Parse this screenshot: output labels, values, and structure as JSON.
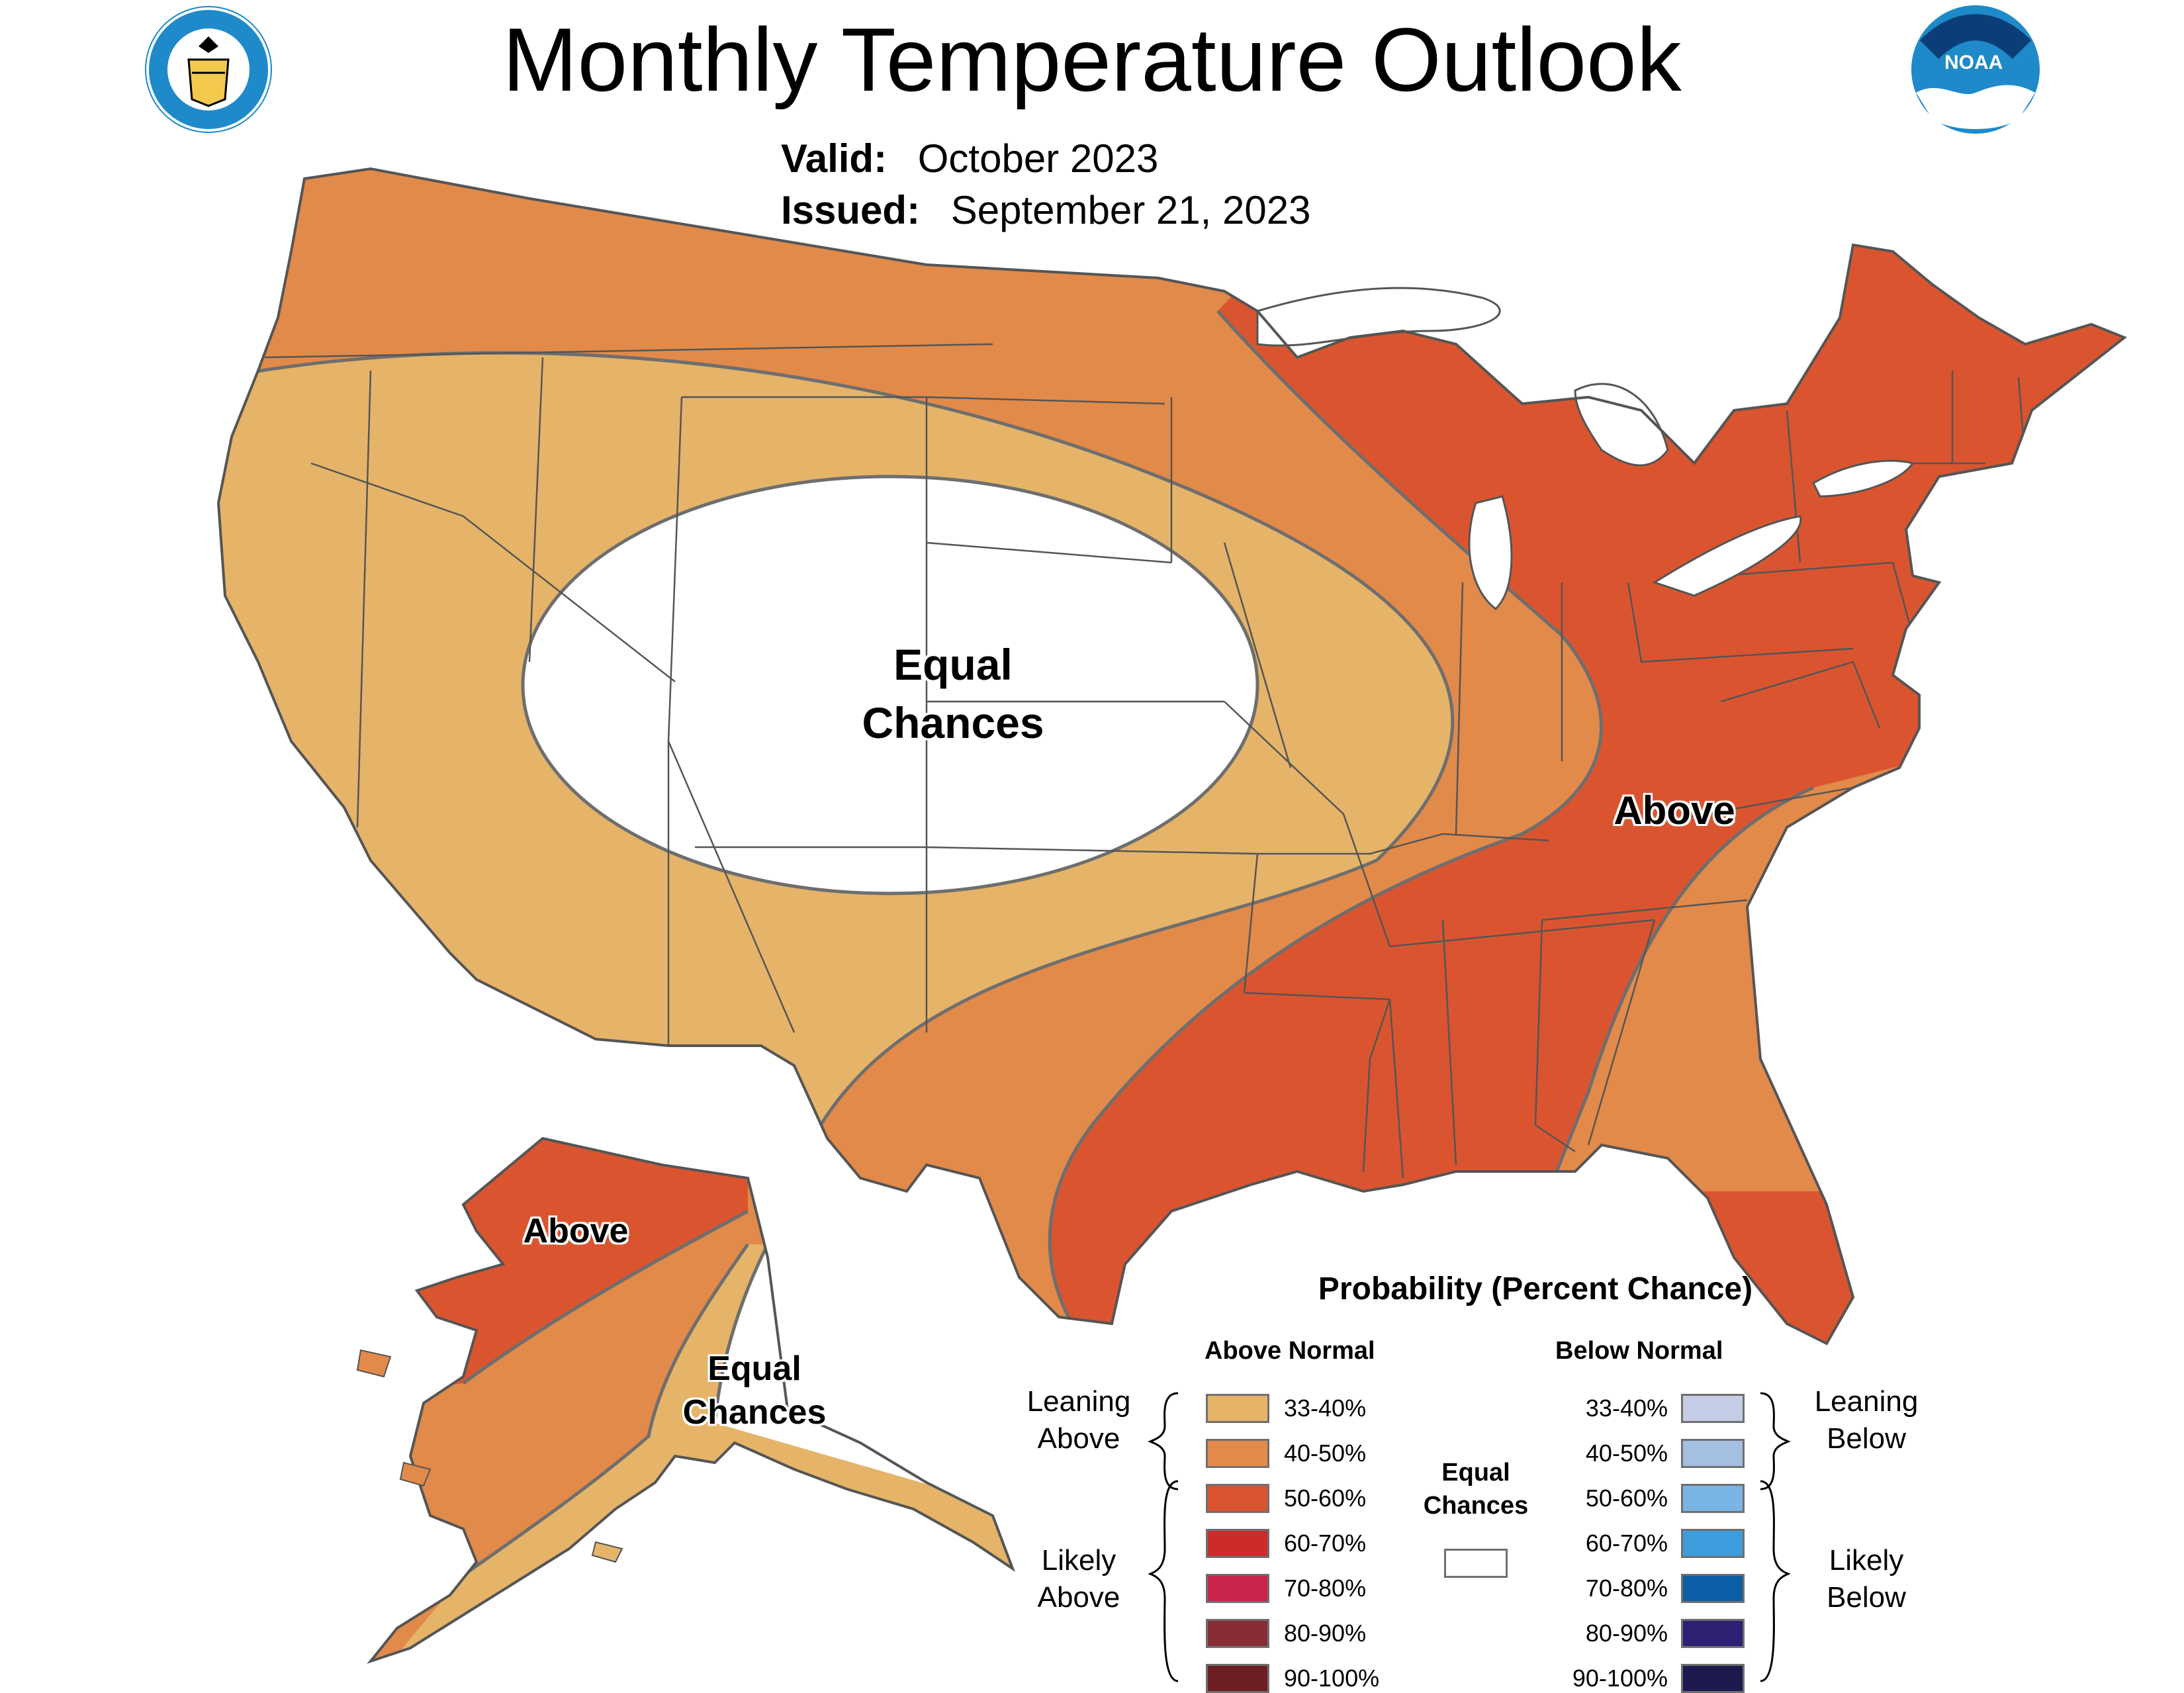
{
  "header": {
    "title": "Monthly Temperature Outlook",
    "valid_label": "Valid:",
    "valid_value": "October 2023",
    "issued_label": "Issued:",
    "issued_value": "September 21, 2023"
  },
  "logos": {
    "commerce": "United States Department of Commerce seal",
    "noaa_text": "NOAA"
  },
  "map_labels": {
    "conus_equal": [
      "Equal",
      "Chances"
    ],
    "conus_above": "Above",
    "alaska_above": "Above",
    "alaska_equal": [
      "Equal",
      "Chances"
    ]
  },
  "legend": {
    "title": "Probability (Percent Chance)",
    "above_header": "Above Normal",
    "below_header": "Below Normal",
    "leaning_above": [
      "Leaning",
      "Above"
    ],
    "likely_above": [
      "Likely",
      "Above"
    ],
    "leaning_below": [
      "Leaning",
      "Below"
    ],
    "likely_below": [
      "Likely",
      "Below"
    ],
    "equal_chances": [
      "Equal",
      "Chances"
    ],
    "above": [
      {
        "range": "33-40%",
        "color": "#E5B469"
      },
      {
        "range": "40-50%",
        "color": "#E28A4A"
      },
      {
        "range": "50-60%",
        "color": "#DA552F"
      },
      {
        "range": "60-70%",
        "color": "#CB2B2B"
      },
      {
        "range": "70-80%",
        "color": "#C7264A"
      },
      {
        "range": "80-90%",
        "color": "#882C35"
      },
      {
        "range": "90-100%",
        "color": "#6C1F22"
      }
    ],
    "below": [
      {
        "range": "33-40%",
        "color": "#C5CDE6"
      },
      {
        "range": "40-50%",
        "color": "#A3BFE2"
      },
      {
        "range": "50-60%",
        "color": "#7AB4E4"
      },
      {
        "range": "60-70%",
        "color": "#3C9CDC"
      },
      {
        "range": "70-80%",
        "color": "#0C5EA6"
      },
      {
        "range": "80-90%",
        "color": "#2E2073"
      },
      {
        "range": "90-100%",
        "color": "#1C1A4E"
      }
    ],
    "equal_color": "#FFFFFF"
  }
}
